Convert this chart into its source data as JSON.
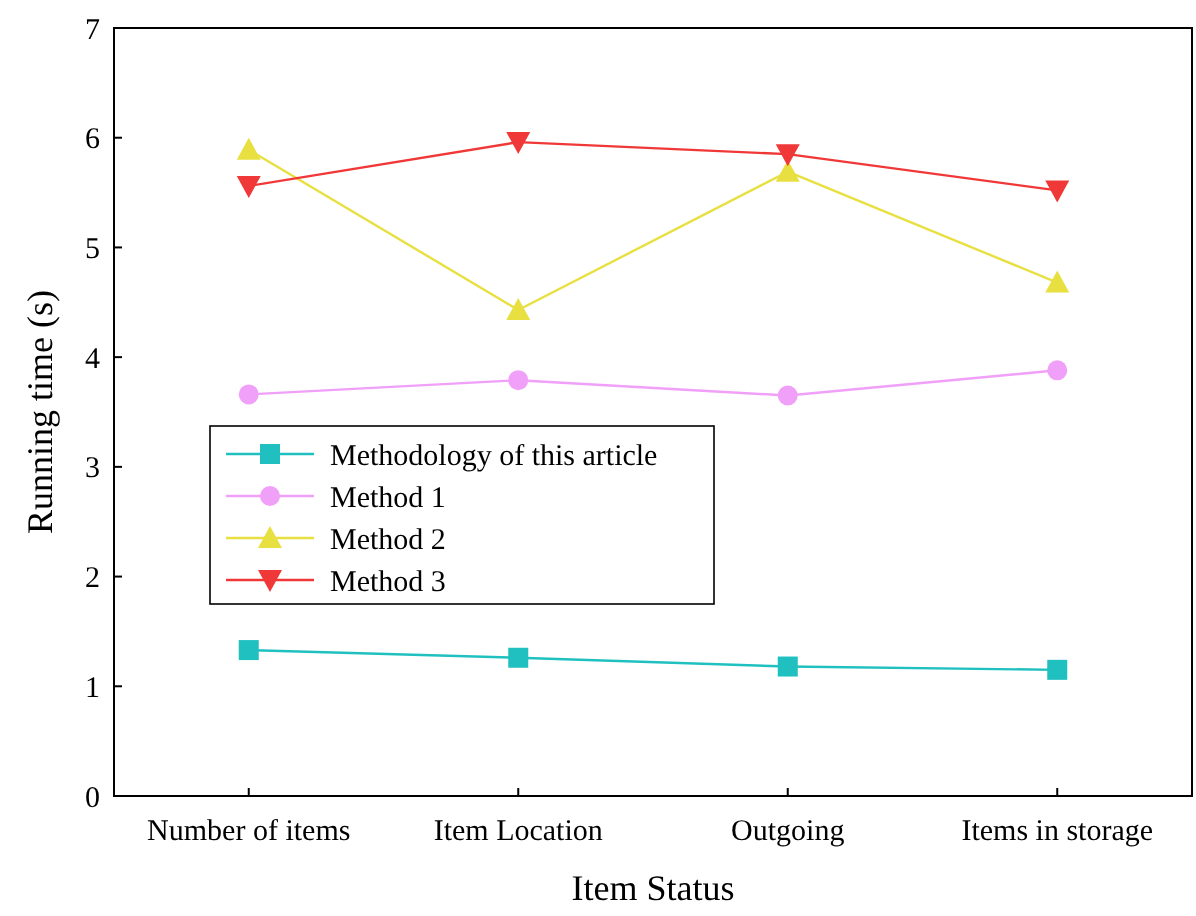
{
  "chart_data": {
    "type": "line",
    "xlabel": "Item Status",
    "ylabel": "Running time (s)",
    "categories": [
      "Number of items",
      "Item Location",
      "Outgoing",
      "Items in storage"
    ],
    "ylim": [
      0,
      7
    ],
    "yticks": [
      0,
      1,
      2,
      3,
      4,
      5,
      6,
      7
    ],
    "grid": false,
    "legend": "center left",
    "series": [
      {
        "name": "Methodology of this article",
        "color": "#20c0c0",
        "marker": "square",
        "values": [
          1.33,
          1.26,
          1.18,
          1.15
        ]
      },
      {
        "name": "Method 1",
        "color": "#f0a0f8",
        "marker": "circle",
        "values": [
          3.66,
          3.79,
          3.65,
          3.88
        ]
      },
      {
        "name": "Method 2",
        "color": "#e8e040",
        "marker": "triangle",
        "values": [
          5.89,
          4.43,
          5.69,
          4.68
        ]
      },
      {
        "name": "Method 3",
        "color": "#f03838",
        "marker": "triangle-down",
        "values": [
          5.56,
          5.96,
          5.85,
          5.52
        ]
      }
    ]
  }
}
